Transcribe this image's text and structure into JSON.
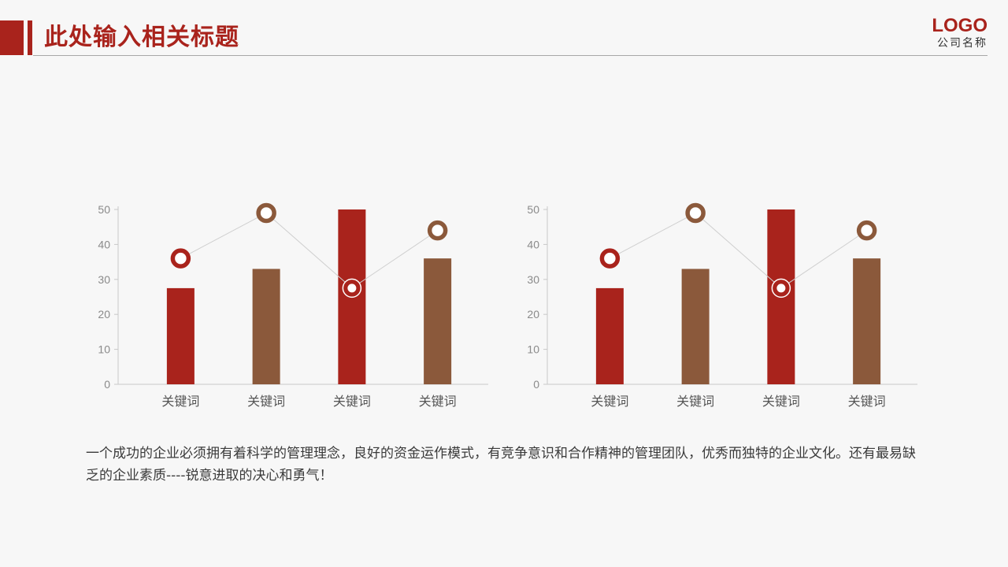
{
  "header": {
    "title": "此处输入相关标题",
    "logo": "LOGO",
    "company": "公司名称"
  },
  "colors": {
    "accent": "#a9231c",
    "brown": "#8b593b",
    "axis": "#c8c8c8",
    "tick_text": "#8a8a8a",
    "label_text": "#555555"
  },
  "description": "一个成功的企业必须拥有着科学的管理理念，良好的资金运作模式，有竞争意识和合作精神的管理团队，优秀而独特的企业文化。还有最易缺乏的企业素质----锐意进取的决心和勇气！",
  "chart_data": [
    {
      "type": "bar",
      "title": "",
      "xlabel": "",
      "ylabel": "",
      "categories": [
        "关键词",
        "关键词",
        "关键词",
        "关键词"
      ],
      "ylim": [
        0,
        50
      ],
      "yticks": [
        0,
        10,
        20,
        30,
        40,
        50
      ],
      "grid": false,
      "legend": "none",
      "series": [
        {
          "type": "bar",
          "values": [
            27.5,
            33,
            50,
            36
          ],
          "colors": [
            "#a9231c",
            "#8b593b",
            "#a9231c",
            "#8b593b"
          ]
        },
        {
          "type": "line",
          "values": [
            36,
            49,
            27.5,
            44
          ],
          "colors": [
            "#a9231c",
            "#8b593b",
            "#a9231c",
            "#8b593b"
          ]
        }
      ]
    },
    {
      "type": "bar",
      "title": "",
      "xlabel": "",
      "ylabel": "",
      "categories": [
        "关键词",
        "关键词",
        "关键词",
        "关键词"
      ],
      "ylim": [
        0,
        50
      ],
      "yticks": [
        0,
        10,
        20,
        30,
        40,
        50
      ],
      "grid": false,
      "legend": "none",
      "series": [
        {
          "type": "bar",
          "values": [
            27.5,
            33,
            50,
            36
          ],
          "colors": [
            "#a9231c",
            "#8b593b",
            "#a9231c",
            "#8b593b"
          ]
        },
        {
          "type": "line",
          "values": [
            36,
            49,
            27.5,
            44
          ],
          "colors": [
            "#a9231c",
            "#8b593b",
            "#a9231c",
            "#8b593b"
          ]
        }
      ]
    }
  ]
}
